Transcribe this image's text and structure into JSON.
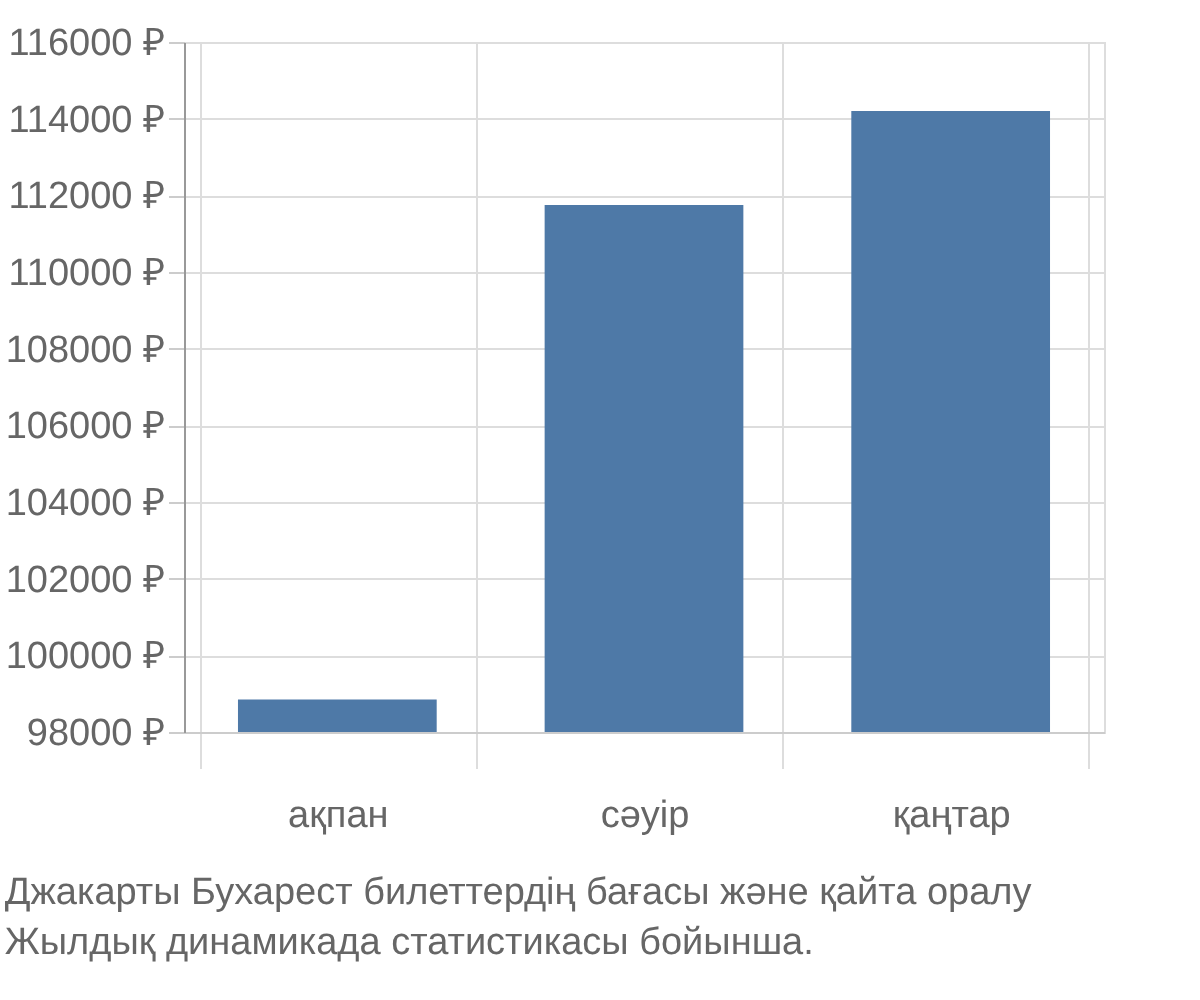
{
  "chart_data": {
    "type": "bar",
    "categories": [
      "ақпан",
      "сәуір",
      "қаңтар"
    ],
    "values": [
      98850,
      111750,
      114200
    ],
    "color": "#4e79a7",
    "ylim": [
      98000,
      116000
    ],
    "yticks": [
      {
        "value": 98000,
        "label": "98000 ₽"
      },
      {
        "value": 100000,
        "label": "100000 ₽"
      },
      {
        "value": 102000,
        "label": "102000 ₽"
      },
      {
        "value": 104000,
        "label": "104000 ₽"
      },
      {
        "value": 106000,
        "label": "106000 ₽"
      },
      {
        "value": 108000,
        "label": "108000 ₽"
      },
      {
        "value": 110000,
        "label": "110000 ₽"
      },
      {
        "value": 112000,
        "label": "112000 ₽"
      },
      {
        "value": 114000,
        "label": "114000 ₽"
      },
      {
        "value": 116000,
        "label": "116000 ₽"
      }
    ],
    "grid": true,
    "annotations": [
      "Джакарты Бухарест билеттердің бағасы және қайта оралу",
      "Жылдық динамикада статистикасы бойынша."
    ]
  }
}
